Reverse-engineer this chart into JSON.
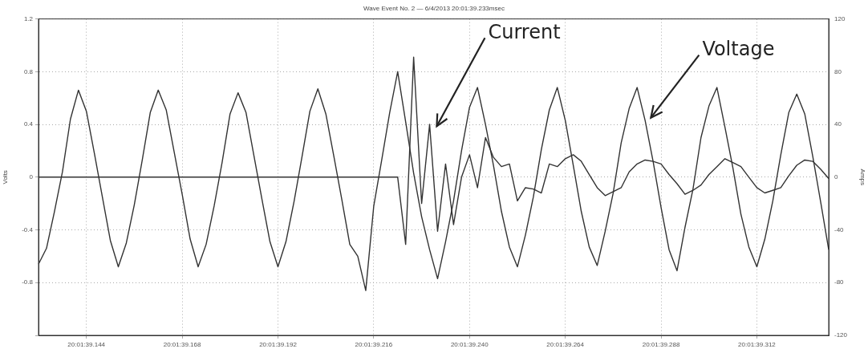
{
  "chart_data": {
    "type": "line",
    "title": "Wave Event No. 2 — 6/4/2013 20:01:39.233msec",
    "ylabel": "Volts",
    "y2label": "Amps",
    "categories": [
      null,
      null,
      null,
      null,
      null,
      null,
      "20:01:39.144",
      null,
      null,
      null,
      null,
      null,
      null,
      null,
      null,
      null,
      null,
      null,
      "20:01:39.168",
      null,
      null,
      null,
      null,
      null,
      null,
      null,
      null,
      null,
      null,
      null,
      "20:01:39.192",
      null,
      null,
      null,
      null,
      null,
      null,
      null,
      null,
      null,
      null,
      null,
      "20:01:39.216",
      null,
      null,
      null,
      null,
      null,
      null,
      null,
      null,
      null,
      null,
      null,
      "20:01:39.240",
      null,
      null,
      null,
      null,
      null,
      null,
      null,
      null,
      null,
      null,
      null,
      "20:01:39.264",
      null,
      null,
      null,
      null,
      null,
      null,
      null,
      null,
      null,
      null,
      null,
      "20:01:39.288",
      null,
      null,
      null,
      null,
      null,
      null,
      null,
      null,
      null,
      null,
      null,
      "20:01:39.312",
      null,
      null,
      null,
      null,
      null,
      null,
      null,
      null,
      null
    ],
    "ylim": [
      -1.2,
      1.2
    ],
    "yticks": [
      {
        "value": -1.2,
        "label": null
      },
      -0.8,
      -0.4,
      0,
      0.4,
      0.8,
      1.2
    ],
    "y2lim": [
      -120,
      120
    ],
    "y2ticks": [
      -120,
      -80,
      -40,
      0,
      40,
      80,
      120
    ],
    "grid": true,
    "legend": false,
    "marker": "none",
    "line_style": "solid",
    "series": [
      {
        "color": "#333333",
        "axis": "y",
        "values": [
          -0.66,
          -0.54,
          -0.26,
          0.04,
          0.44,
          0.66,
          0.5,
          0.18,
          -0.15,
          -0.48,
          -0.68,
          -0.5,
          -0.21,
          0.13,
          0.49,
          0.66,
          0.51,
          0.19,
          -0.13,
          -0.47,
          -0.68,
          -0.51,
          -0.22,
          0.11,
          0.48,
          0.64,
          0.49,
          0.16,
          -0.17,
          -0.49,
          -0.68,
          -0.49,
          -0.19,
          0.15,
          0.5,
          0.67,
          0.48,
          0.16,
          -0.17,
          -0.51,
          -0.6,
          -0.86,
          -0.22,
          0.13,
          0.49,
          0.8,
          0.42,
          0.03,
          -0.3,
          -0.55,
          -0.77,
          -0.49,
          -0.18,
          0.2,
          0.53,
          0.68,
          0.4,
          0.09,
          -0.26,
          -0.53,
          -0.68,
          -0.44,
          -0.15,
          0.21,
          0.51,
          0.68,
          0.43,
          0.09,
          -0.26,
          -0.53,
          -0.67,
          -0.41,
          -0.12,
          0.26,
          0.52,
          0.68,
          0.43,
          0.12,
          -0.23,
          -0.55,
          -0.71,
          -0.38,
          -0.09,
          0.3,
          0.54,
          0.68,
          0.38,
          0.07,
          -0.28,
          -0.53,
          -0.68,
          -0.47,
          -0.18,
          0.17,
          0.49,
          0.63,
          0.48,
          0.16,
          -0.19,
          -0.55
        ]
      },
      {
        "color": "#333333",
        "axis": "y2",
        "values": [
          0,
          0,
          0,
          0,
          0,
          0,
          0,
          0,
          0,
          0,
          0,
          0,
          0,
          0,
          0,
          0,
          0,
          0,
          0,
          0,
          0,
          0,
          0,
          0,
          0,
          0,
          0,
          0,
          0,
          0,
          0,
          0,
          0,
          0,
          0,
          0,
          0,
          0,
          0,
          0,
          0,
          0,
          0,
          0,
          0,
          0,
          -51,
          91,
          -20,
          40,
          -41,
          10,
          -36,
          0,
          17,
          -8,
          30,
          15,
          8,
          10,
          -18,
          -8,
          -9,
          -12,
          10,
          8,
          14,
          17,
          12,
          2,
          -8,
          -14,
          -11,
          -8,
          4,
          10,
          13,
          12,
          10,
          2,
          -5,
          -13,
          -10,
          -6,
          2,
          8,
          14,
          11,
          8,
          0,
          -8,
          -12,
          -10,
          -8,
          1,
          9,
          13,
          12,
          6,
          -1
        ]
      }
    ],
    "annotations": [
      "Current",
      "Voltage"
    ]
  }
}
